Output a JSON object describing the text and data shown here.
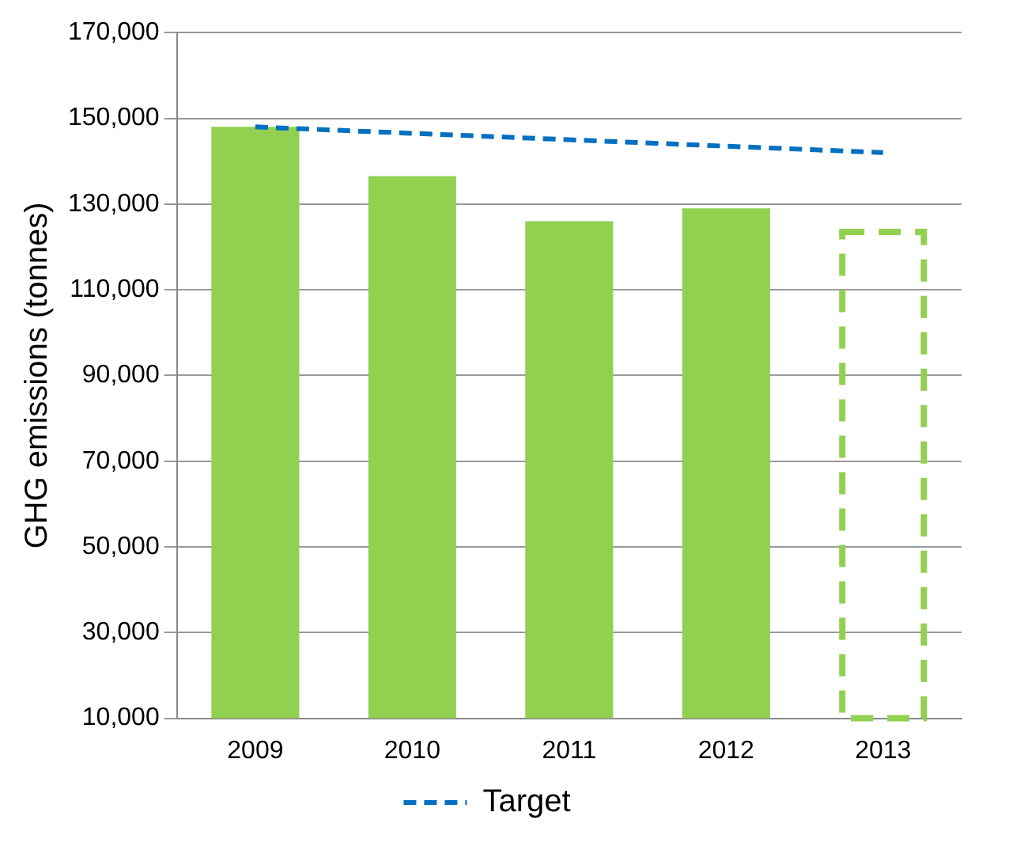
{
  "chart_data": {
    "type": "bar",
    "ylabel": "GHG emissions (tonnes)",
    "categories": [
      "2009",
      "2010",
      "2011",
      "2012",
      "2013"
    ],
    "series": [
      {
        "color": "#92d050",
        "values": [
          148000,
          136500,
          126000,
          129000,
          null
        ]
      },
      {
        "color": "#92d050",
        "line_style": "dashed",
        "values": [
          null,
          null,
          null,
          null,
          123500
        ]
      },
      {
        "type": "line",
        "name": "Target",
        "color": "#0070c0",
        "line_style": "dashed",
        "marker": "none",
        "values": [
          148000,
          146500,
          145000,
          143500,
          142000
        ]
      }
    ],
    "ylim": [
      10000,
      170000
    ],
    "yticks": [
      {
        "value": 10000,
        "label": "10,000"
      },
      {
        "value": 30000,
        "label": "30,000"
      },
      {
        "value": 50000,
        "label": "50,000"
      },
      {
        "value": 70000,
        "label": "70,000"
      },
      {
        "value": 90000,
        "label": "90,000"
      },
      {
        "value": 110000,
        "label": "110,000"
      },
      {
        "value": 130000,
        "label": "130,000"
      },
      {
        "value": 150000,
        "label": "150,000"
      },
      {
        "value": 170000,
        "label": "170,000"
      }
    ],
    "grid": "y",
    "legend": "bottom"
  }
}
